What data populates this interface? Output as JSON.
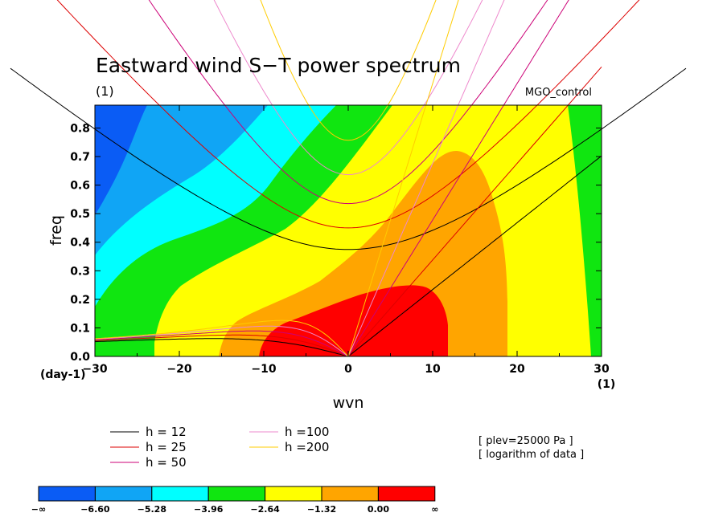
{
  "chart_data": {
    "type": "contour",
    "title": "Eastward wind S−T power spectrum",
    "subtitle_left": "(1)",
    "subtitle_right": "MGO_control",
    "xlabel": "wvn",
    "ylabel": "freq",
    "x_unit_label": "(1)",
    "y_unit_label": "(day-1)",
    "xlim": [
      -30,
      30
    ],
    "ylim": [
      0,
      0.88
    ],
    "xticks": [
      -30,
      -20,
      -10,
      0,
      10,
      20,
      30
    ],
    "xtick_labels": [
      "−30",
      "−20",
      "−10",
      "0",
      "10",
      "20",
      "30"
    ],
    "yticks": [
      0,
      0.1,
      0.2,
      0.3,
      0.4,
      0.5,
      0.6,
      0.7,
      0.8
    ],
    "ytick_labels": [
      "0.0",
      "0.1",
      "0.2",
      "0.3",
      "0.4",
      "0.5",
      "0.6",
      "0.7",
      "0.8"
    ],
    "fill_levels": [
      -6.6,
      -5.28,
      -3.96,
      -2.64,
      -1.32,
      0.0
    ],
    "fill_colors": [
      "#0a5cf5",
      "#10a5f5",
      "#00ffff",
      "#10e610",
      "#ffff00",
      "#ffa500",
      "#ff0000"
    ],
    "colorbar_labels": [
      "−∞",
      "−6.60",
      "−5.28",
      "−3.96",
      "−2.64",
      "−1.32",
      "0.00",
      "∞"
    ],
    "dispersion_curves": [
      {
        "name": "h = 12",
        "h": 12,
        "color": "#000000"
      },
      {
        "name": "h = 25",
        "h": 25,
        "color": "#dd0000"
      },
      {
        "name": "h = 50",
        "h": 50,
        "color": "#cc0077"
      },
      {
        "name": "h =100",
        "h": 100,
        "color": "#ee88cc"
      },
      {
        "name": "h =200",
        "h": 200,
        "color": "#ffcc00"
      }
    ],
    "annotations": [
      "[ plev=25000 Pa ]",
      "[ logarithm of data ]"
    ]
  }
}
